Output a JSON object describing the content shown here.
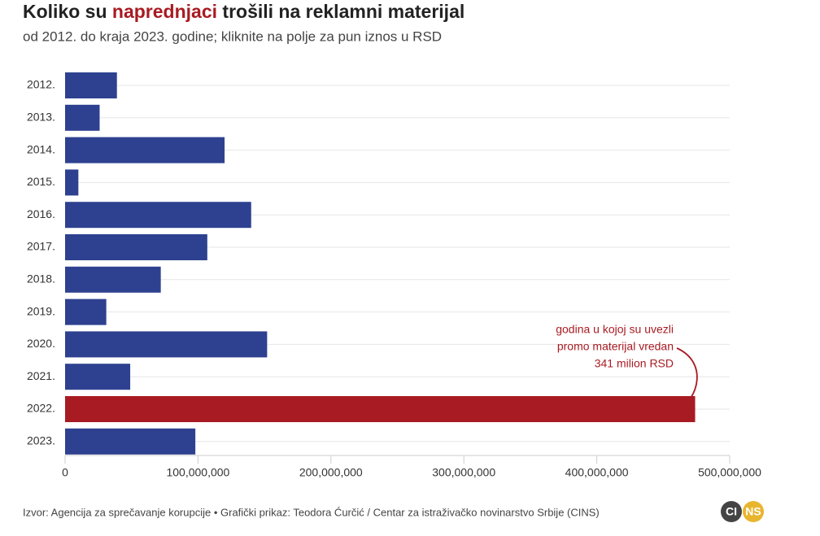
{
  "chart_data": {
    "type": "bar",
    "orientation": "horizontal",
    "title_parts": [
      "Koliko su",
      "naprednjaci",
      "trošili na reklamni materijal"
    ],
    "title_highlight_color": "#a81b22",
    "subtitle": "od 2012. do kraja 2023. godine; kliknite na polje za pun iznos u RSD",
    "categories": [
      "2012.",
      "2013.",
      "2014.",
      "2015.",
      "2016.",
      "2017.",
      "2018.",
      "2019.",
      "2020.",
      "2021.",
      "2022.",
      "2023."
    ],
    "values": [
      39000000,
      26000000,
      120000000,
      10000000,
      140000000,
      107000000,
      72000000,
      31000000,
      152000000,
      49000000,
      474000000,
      98000000
    ],
    "colors": [
      "#2e4190",
      "#2e4190",
      "#2e4190",
      "#2e4190",
      "#2e4190",
      "#2e4190",
      "#2e4190",
      "#2e4190",
      "#2e4190",
      "#2e4190",
      "#a81b22",
      "#2e4190"
    ],
    "xlim": [
      0,
      500000000
    ],
    "xticks": [
      0,
      {
        "value": 100000000,
        "label": "100,000,000"
      },
      {
        "value": 200000000,
        "label": "200,000,000"
      },
      {
        "value": 300000000,
        "label": "300,000,000"
      },
      {
        "value": 400000000,
        "label": "400,000,000"
      },
      {
        "value": 500000000,
        "label": "500,000,000"
      }
    ],
    "annotation": [
      "godina u kojoj su uvezli",
      "promo materijal vredan",
      "341 milion RSD"
    ],
    "source": "Izvor: Agencija za sprečavanje korupcije • Grafički prikaz: Teodora Ćurčić / Centar za istraživačko novinarstvo Srbije (CINS)",
    "logo": [
      "CI",
      "NS"
    ]
  }
}
